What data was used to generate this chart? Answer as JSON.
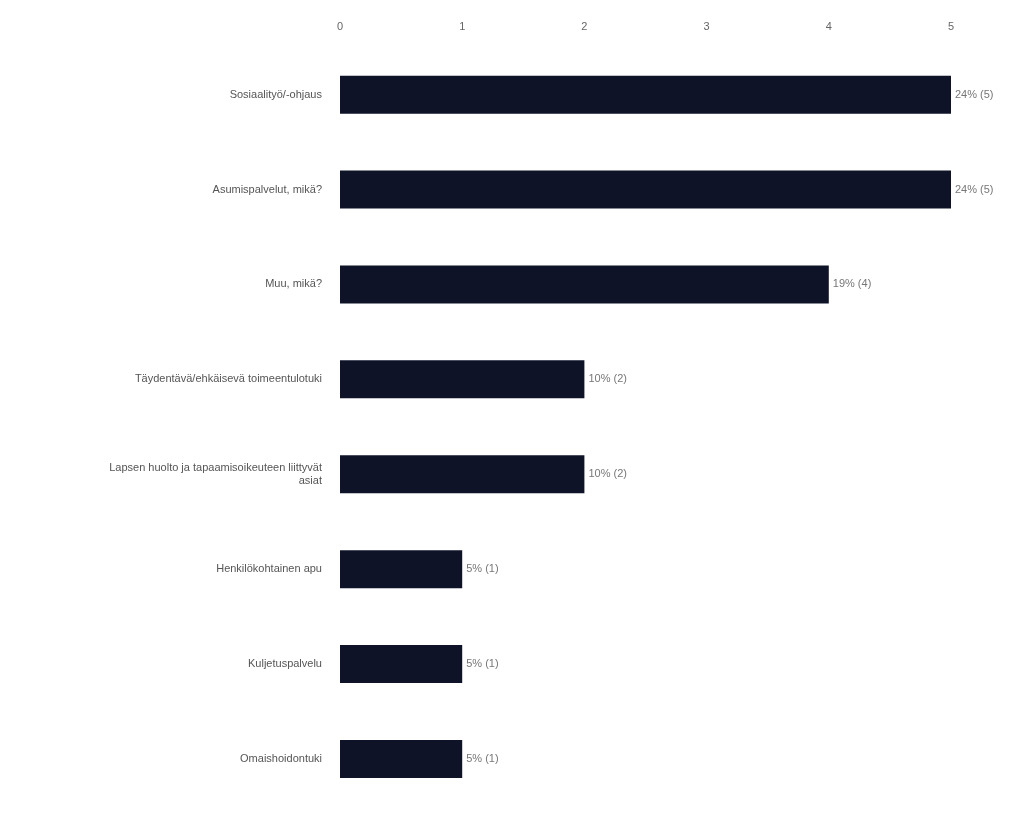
{
  "chart_data": {
    "type": "bar",
    "orientation": "horizontal",
    "categories": [
      "Sosiaalityö/-ohjaus",
      "Asumispalvelut, mikä?",
      "Muu, mikä?",
      "Täydentävä/ehkäisevä toimeentulotuki",
      "Lapsen huolto ja tapaamisoikeuteen liittyvät asiat",
      "Henkilökohtainen apu",
      "Kuljetuspalvelu",
      "Omaishoidontuki"
    ],
    "values": [
      5,
      5,
      4,
      2,
      2,
      1,
      1,
      1
    ],
    "value_labels": [
      "24% (5)",
      "24% (5)",
      "19% (4)",
      "10% (2)",
      "10% (2)",
      "5% (1)",
      "5% (1)",
      "5% (1)"
    ],
    "color": "#0e1328",
    "xlim": [
      0,
      5
    ],
    "xticks": [
      0,
      1,
      2,
      3,
      4,
      5
    ],
    "grid": false,
    "legend": false
  }
}
